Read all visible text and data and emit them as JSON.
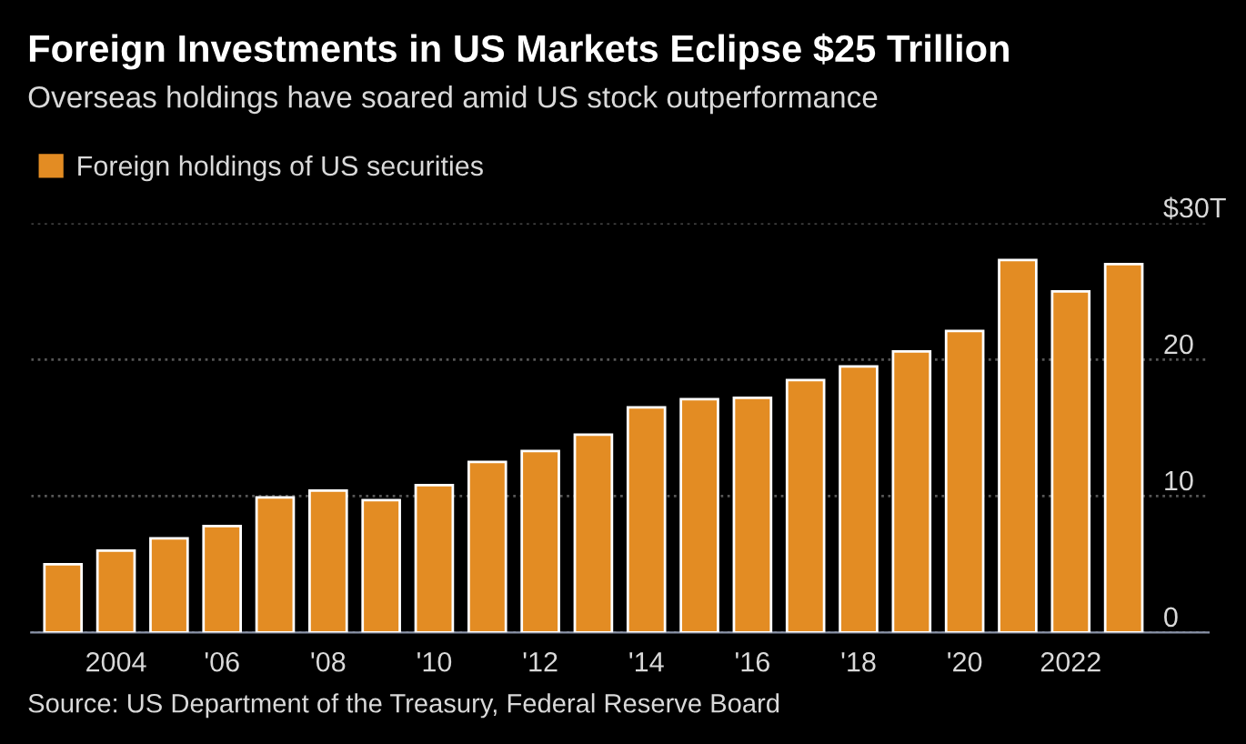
{
  "chart_data": {
    "type": "bar",
    "title": "Foreign Investments in US Markets Eclipse $25 Trillion",
    "subtitle": "Overseas holdings have soared amid US stock outperformance",
    "x": [
      2003,
      2004,
      2005,
      2006,
      2007,
      2008,
      2009,
      2010,
      2011,
      2012,
      2013,
      2014,
      2015,
      2016,
      2017,
      2018,
      2019,
      2020,
      2021,
      2022,
      2023
    ],
    "series": [
      {
        "name": "Foreign holdings of US securities",
        "color": "#e38c23",
        "values": [
          5.0,
          6.0,
          6.9,
          7.8,
          9.9,
          10.4,
          9.7,
          10.8,
          12.5,
          13.3,
          14.5,
          16.5,
          17.1,
          17.2,
          18.5,
          19.5,
          20.6,
          22.1,
          27.3,
          25.0,
          27.0
        ]
      }
    ],
    "xlim": [
      2002.4,
      2024.6
    ],
    "xticks": [
      {
        "value": 2004,
        "label": "2004"
      },
      {
        "value": 2006,
        "label": "'06"
      },
      {
        "value": 2008,
        "label": "'08"
      },
      {
        "value": 2010,
        "label": "'10"
      },
      {
        "value": 2012,
        "label": "'12"
      },
      {
        "value": 2014,
        "label": "'14"
      },
      {
        "value": 2016,
        "label": "'16"
      },
      {
        "value": 2018,
        "label": "'18"
      },
      {
        "value": 2020,
        "label": "'20"
      },
      {
        "value": 2022,
        "label": "2022"
      }
    ],
    "ylim": [
      0,
      30
    ],
    "yticks": [
      0,
      10,
      20,
      {
        "value": 30,
        "label": "$30T"
      }
    ],
    "grid": "y",
    "legend": "top left",
    "annotations": [
      "Source: US Department of the Treasury, Federal Reserve Board"
    ]
  }
}
